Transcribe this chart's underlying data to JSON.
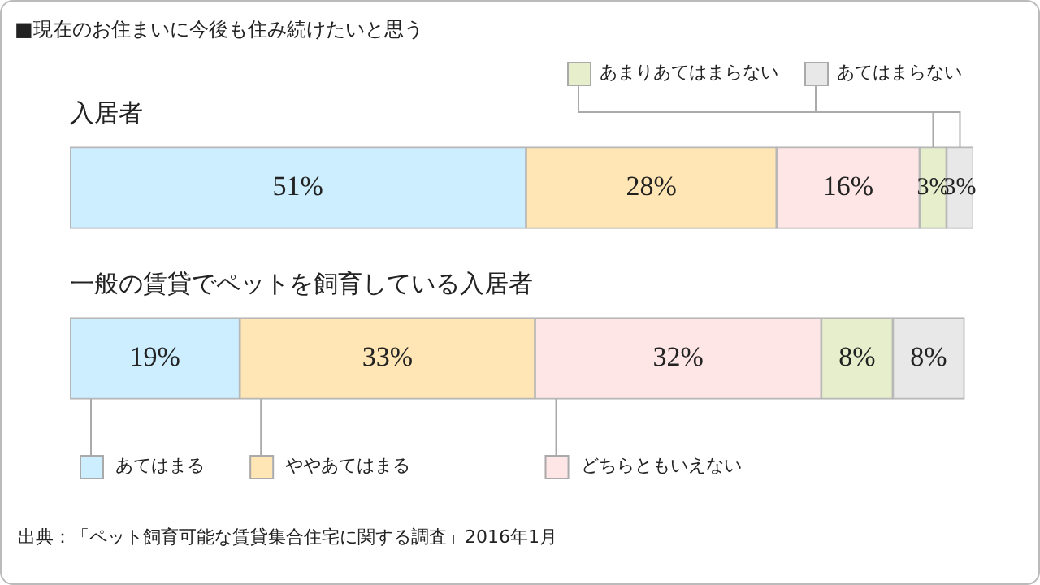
{
  "chart_data": {
    "type": "bar",
    "orientation": "horizontal",
    "stacked": true,
    "title": "■現在のお住まいに今後も住み続けたいと思う",
    "categories": [
      "入居者",
      "一般の賃貸でペットを飼育している入居者"
    ],
    "series": [
      {
        "name": "あてはまる",
        "color": "#cceeff",
        "values": [
          51,
          19
        ],
        "value_labels": [
          "51%",
          "19%"
        ]
      },
      {
        "name": "ややあてはまる",
        "color": "#ffe6b4",
        "values": [
          28,
          33
        ],
        "value_labels": [
          "28%",
          "33%"
        ]
      },
      {
        "name": "どちらともいえない",
        "color": "#ffe6e6",
        "values": [
          16,
          32
        ],
        "value_labels": [
          "16%",
          "32%"
        ]
      },
      {
        "name": "あまりあてはまらない",
        "color": "#e6eecc",
        "values": [
          3,
          8
        ],
        "value_labels": [
          "3%",
          "8%"
        ]
      },
      {
        "name": "あてはまらない",
        "color": "#e8e8e8",
        "values": [
          3,
          8
        ],
        "value_labels": [
          "3%",
          "8%"
        ]
      }
    ],
    "legend": "bottom",
    "tick_labels": false,
    "annotations": [
      "出典：「ペット飼育可能な賃貸集合住宅に関する調査」2016年1月"
    ]
  }
}
